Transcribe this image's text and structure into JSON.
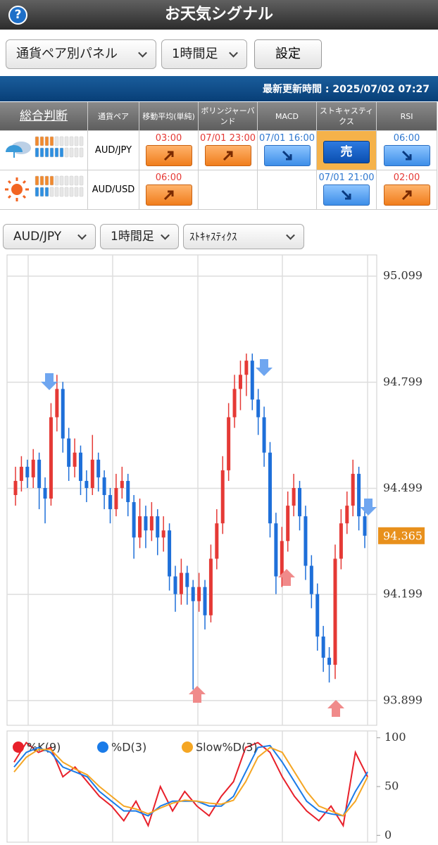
{
  "header": {
    "help": "?",
    "title": "お天気シグナル"
  },
  "controls": {
    "panel": "通貨ペア別パネル",
    "timeframe": "1時間足",
    "settings": "設定"
  },
  "update_bar": "最新更新時間 : 2025/07/02 07:27",
  "table": {
    "columns": [
      "総合判断",
      "通貨ペア",
      "移動平均(単純)",
      "ボリンジャーバンド",
      "MACD",
      "ストキャスティクス",
      "RSI"
    ],
    "rows": [
      {
        "weather": "rain",
        "pair": "AUD/JPY",
        "cells": [
          {
            "time": "03:00",
            "signal": "up"
          },
          {
            "time": "07/01 23:00",
            "signal": "up"
          },
          {
            "time": "07/01 16:00",
            "signal": "down"
          },
          {
            "label": "売"
          },
          {
            "time": "06:00",
            "signal": "down"
          }
        ]
      },
      {
        "weather": "sun",
        "pair": "AUD/USD",
        "cells": [
          {
            "time": "06:00",
            "signal": "up"
          },
          {},
          {},
          {
            "time": "07/01 21:00",
            "signal": "down"
          },
          {
            "time": "02:00",
            "signal": "up"
          }
        ]
      }
    ]
  },
  "chart_controls": {
    "pair": "AUD/JPY",
    "timeframe": "1時間足",
    "indicator": "ｽﾄｷｬｽﾃｨｸｽ"
  },
  "chart_data": [
    {
      "type": "candlestick",
      "up_color": "#e53935",
      "down_color": "#1e6fd9",
      "ylim": [
        93.829,
        95.159
      ],
      "yticks": [
        95.099,
        94.799,
        94.499,
        94.199,
        93.899
      ],
      "grid": true,
      "last_price": 94.365,
      "last_price_color": "#e8901c",
      "candles": [
        [
          94.48,
          94.56,
          94.45,
          94.52
        ],
        [
          94.52,
          94.59,
          94.49,
          94.56
        ],
        [
          94.56,
          94.58,
          94.5,
          94.53
        ],
        [
          94.53,
          94.61,
          94.5,
          94.58
        ],
        [
          94.58,
          94.6,
          94.44,
          94.5
        ],
        [
          94.5,
          94.53,
          94.4,
          94.47
        ],
        [
          94.47,
          94.74,
          94.45,
          94.7
        ],
        [
          94.7,
          94.82,
          94.66,
          94.78
        ],
        [
          94.78,
          94.8,
          94.6,
          94.64
        ],
        [
          94.64,
          94.67,
          94.52,
          94.56
        ],
        [
          94.56,
          94.64,
          94.53,
          94.6
        ],
        [
          94.6,
          94.62,
          94.48,
          94.52
        ],
        [
          94.52,
          94.55,
          94.46,
          94.5
        ],
        [
          94.5,
          94.65,
          94.48,
          94.58
        ],
        [
          94.58,
          94.6,
          94.49,
          94.53
        ],
        [
          94.53,
          94.55,
          94.44,
          94.48
        ],
        [
          94.48,
          94.5,
          94.4,
          94.44
        ],
        [
          94.44,
          94.54,
          94.42,
          94.5
        ],
        [
          94.5,
          94.56,
          94.47,
          94.52
        ],
        [
          94.52,
          94.54,
          94.42,
          94.46
        ],
        [
          94.46,
          94.48,
          94.3,
          94.36
        ],
        [
          94.36,
          94.47,
          94.33,
          94.42
        ],
        [
          94.42,
          94.45,
          94.33,
          94.38
        ],
        [
          94.38,
          94.46,
          94.35,
          94.42
        ],
        [
          94.42,
          94.44,
          94.31,
          94.36
        ],
        [
          94.36,
          94.42,
          94.32,
          94.38
        ],
        [
          94.38,
          94.4,
          94.21,
          94.25
        ],
        [
          94.25,
          94.28,
          94.15,
          94.2
        ],
        [
          94.2,
          94.3,
          94.17,
          94.26
        ],
        [
          94.26,
          94.28,
          94.17,
          94.22
        ],
        [
          94.22,
          94.24,
          93.93,
          94.18
        ],
        [
          94.18,
          94.26,
          94.15,
          94.22
        ],
        [
          94.22,
          94.24,
          94.1,
          94.14
        ],
        [
          94.14,
          94.34,
          94.12,
          94.3
        ],
        [
          94.3,
          94.44,
          94.27,
          94.4
        ],
        [
          94.4,
          94.59,
          94.37,
          94.55
        ],
        [
          94.55,
          94.74,
          94.52,
          94.7
        ],
        [
          94.7,
          94.82,
          94.67,
          94.78
        ],
        [
          94.78,
          94.86,
          94.72,
          94.82
        ],
        [
          94.82,
          94.88,
          94.76,
          94.86
        ],
        [
          94.86,
          94.88,
          94.72,
          94.75
        ],
        [
          94.75,
          94.78,
          94.65,
          94.7
        ],
        [
          94.7,
          94.73,
          94.56,
          94.6
        ],
        [
          94.6,
          94.63,
          94.36,
          94.4
        ],
        [
          94.4,
          94.43,
          94.2,
          94.25
        ],
        [
          94.25,
          94.39,
          94.22,
          94.35
        ],
        [
          94.35,
          94.49,
          94.32,
          94.45
        ],
        [
          94.45,
          94.54,
          94.42,
          94.5
        ],
        [
          94.5,
          94.52,
          94.38,
          94.42
        ],
        [
          94.42,
          94.45,
          94.24,
          94.28
        ],
        [
          94.28,
          94.31,
          94.16,
          94.2
        ],
        [
          94.2,
          94.23,
          94.04,
          94.08
        ],
        [
          94.08,
          94.11,
          93.98,
          94.02
        ],
        [
          94.02,
          94.05,
          93.95,
          94.0
        ],
        [
          94.0,
          94.34,
          93.96,
          94.3
        ],
        [
          94.3,
          94.44,
          94.27,
          94.4
        ],
        [
          94.4,
          94.49,
          94.37,
          94.45
        ],
        [
          94.45,
          94.58,
          94.42,
          94.54
        ],
        [
          94.54,
          94.56,
          94.38,
          94.42
        ],
        [
          94.42,
          94.44,
          94.33,
          94.365
        ]
      ]
    },
    {
      "type": "line",
      "ylim": [
        -7,
        107
      ],
      "yticks": [
        100,
        50,
        0
      ],
      "series": [
        {
          "name": "%K(9)",
          "color": "#e8202a",
          "values": [
            75,
            95,
            85,
            90,
            60,
            70,
            55,
            40,
            30,
            15,
            35,
            10,
            50,
            25,
            45,
            30,
            20,
            40,
            55,
            90,
            95,
            85,
            60,
            40,
            25,
            15,
            30,
            10,
            85,
            60
          ]
        },
        {
          "name": "%D(3)",
          "color": "#1a7be8",
          "values": [
            70,
            85,
            90,
            85,
            70,
            65,
            60,
            45,
            35,
            25,
            25,
            20,
            30,
            35,
            35,
            35,
            30,
            30,
            40,
            65,
            90,
            92,
            75,
            55,
            35,
            25,
            22,
            20,
            45,
            65
          ]
        },
        {
          "name": "Slow%D(3)",
          "color": "#f5a623",
          "values": [
            65,
            80,
            88,
            88,
            75,
            68,
            62,
            50,
            40,
            30,
            27,
            22,
            28,
            33,
            36,
            35,
            33,
            32,
            36,
            55,
            80,
            90,
            85,
            65,
            45,
            30,
            25,
            20,
            35,
            60
          ]
        }
      ]
    }
  ]
}
